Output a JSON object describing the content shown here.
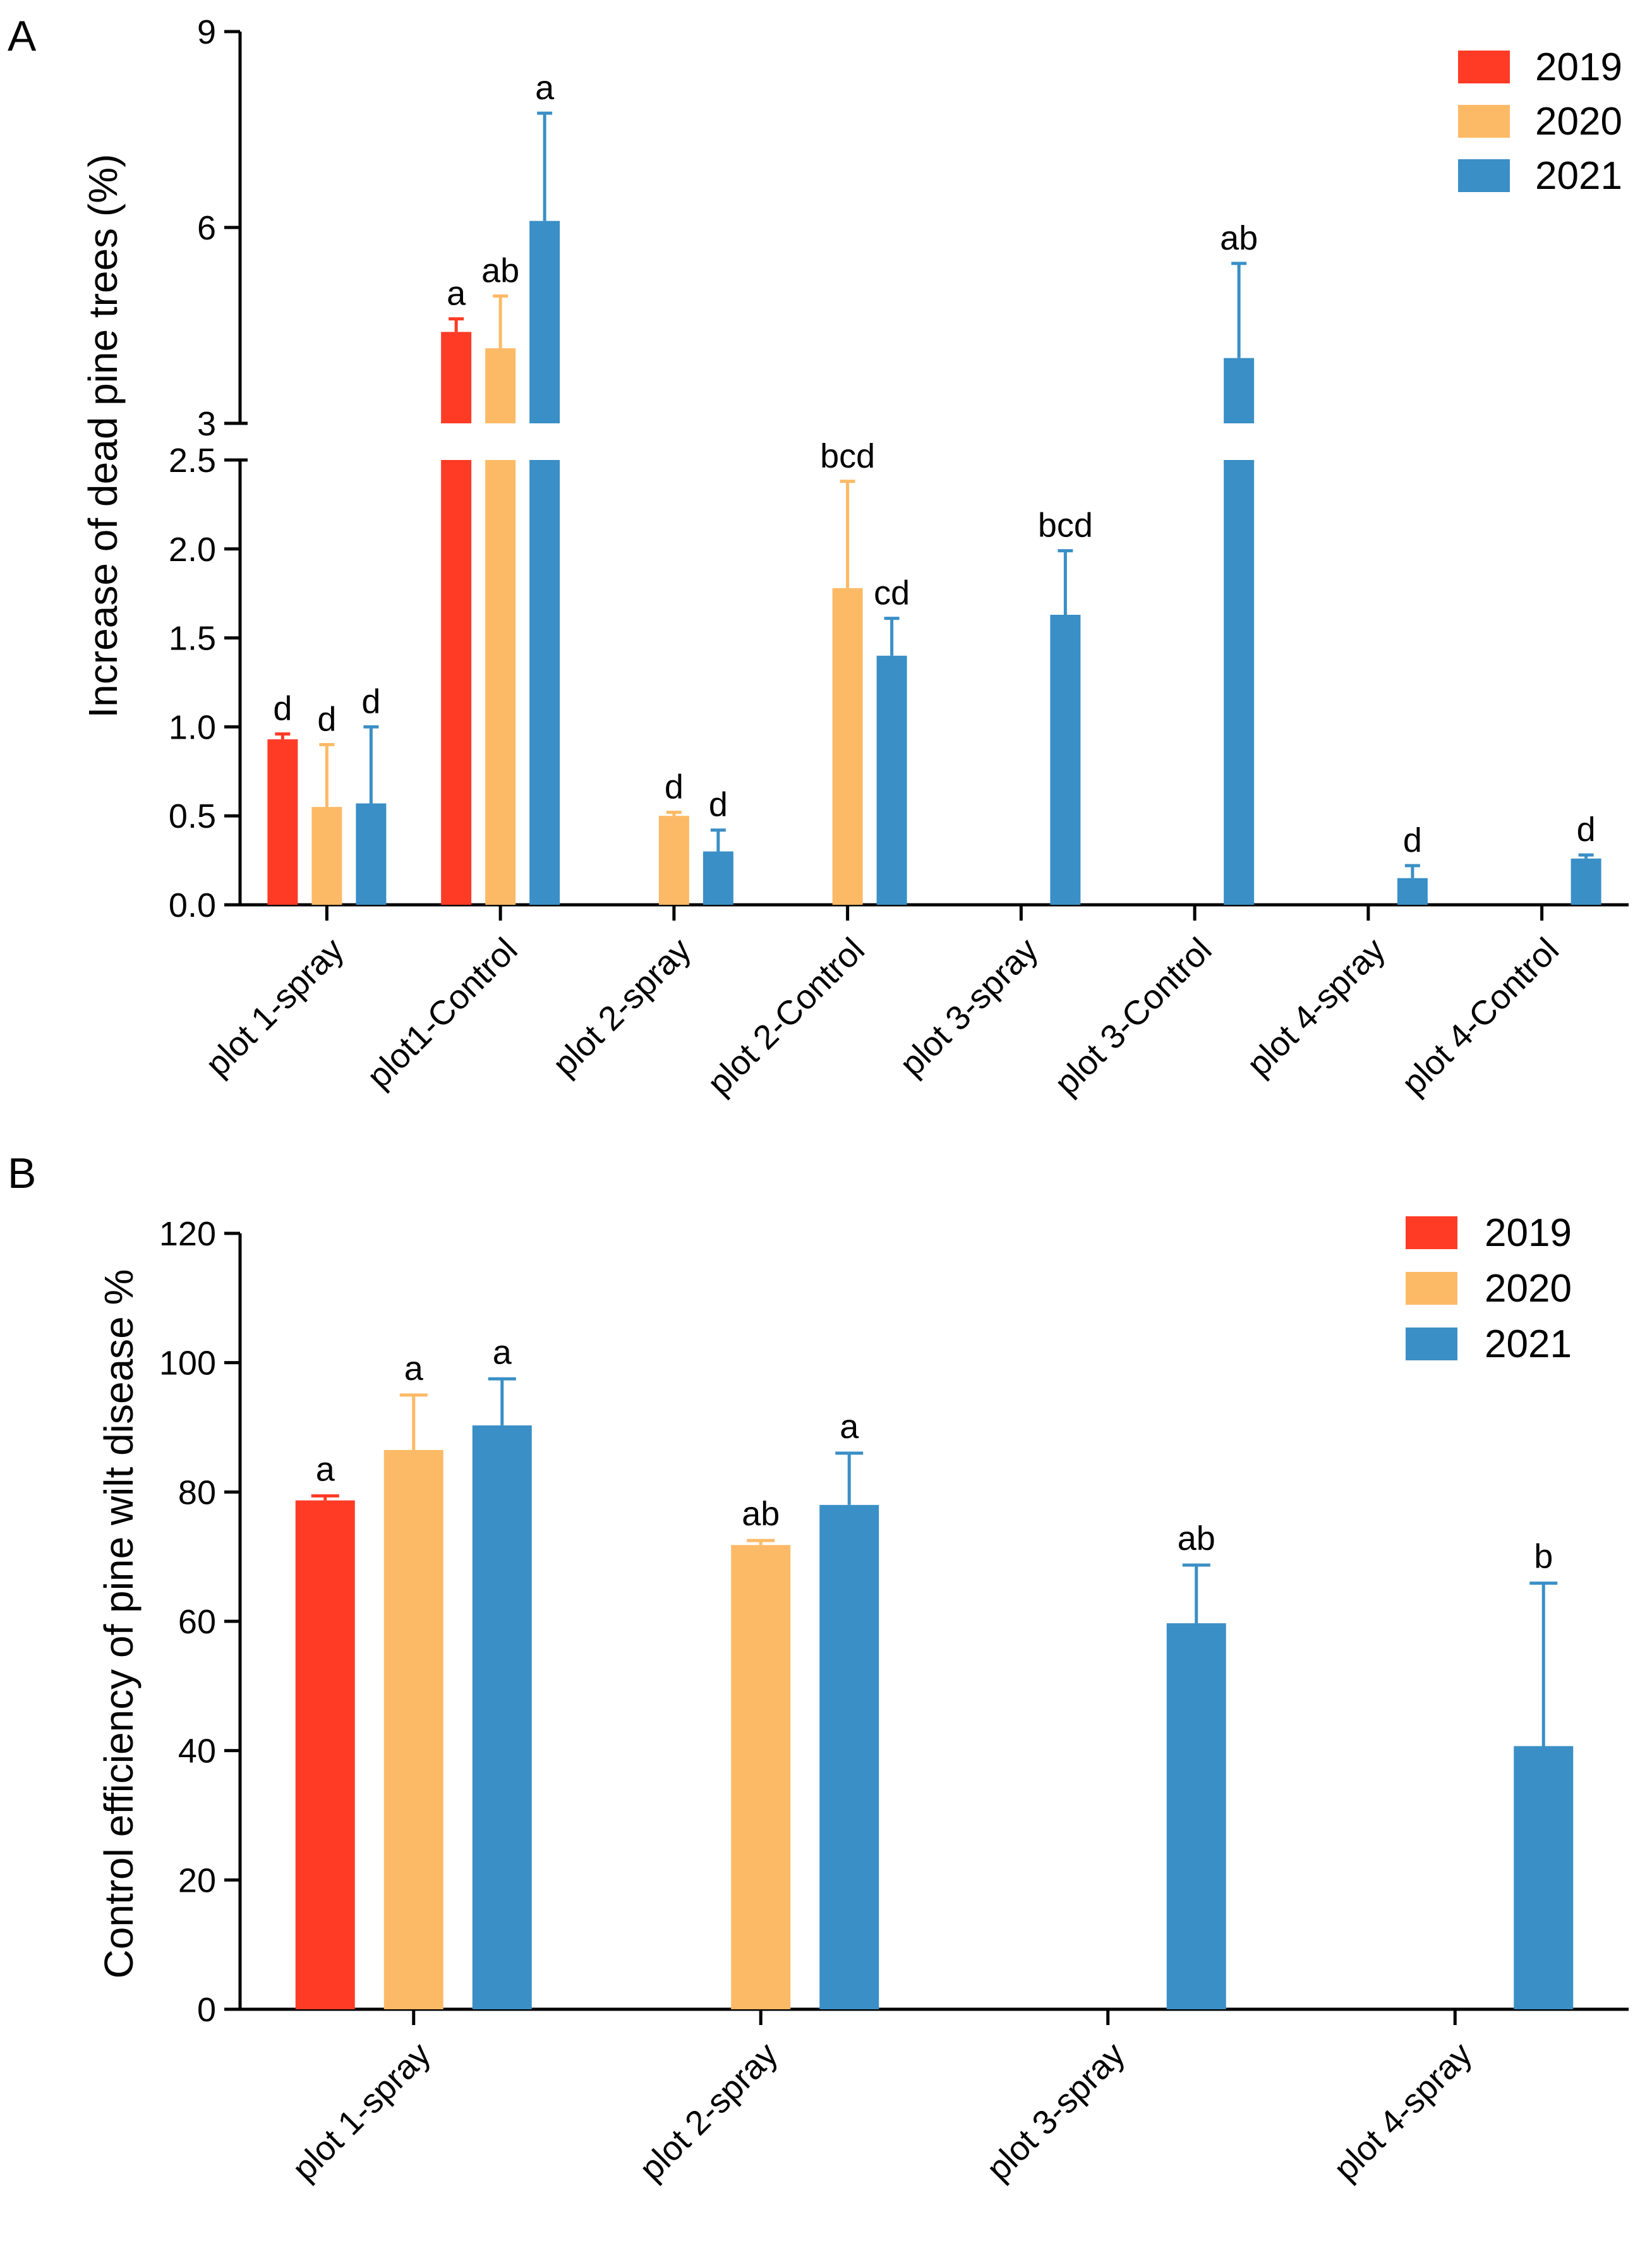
{
  "figure": {
    "colors": {
      "2019": "#FF3B26",
      "2020": "#FDBA66",
      "2021": "#3A8FC6"
    }
  },
  "chart_data": [
    {
      "panel": "A",
      "type": "bar",
      "ylabel": "Increase of dead pine trees (%)",
      "xlabel": "",
      "broken_axis": {
        "lower_range": [
          0,
          2.5
        ],
        "upper_range": [
          3,
          9
        ]
      },
      "lower_ticks": [
        "0.0",
        "0.5",
        "1.0",
        "1.5",
        "2.0",
        "2.5"
      ],
      "upper_ticks": [
        "3",
        "6",
        "9"
      ],
      "categories": [
        "plot 1-spray",
        "plot1-Control",
        "plot 2-spray",
        "plot 2-Control",
        "plot 3-spray",
        "plot 3-Control",
        "plot 4-spray",
        "plot 4-Control"
      ],
      "legend": {
        "position": "top-right",
        "entries": [
          "2019",
          "2020",
          "2021"
        ]
      },
      "series": [
        {
          "name": "2019",
          "values": [
            0.93,
            4.4,
            null,
            null,
            null,
            null,
            null,
            null
          ],
          "errors": [
            0.03,
            0.2,
            null,
            null,
            null,
            null,
            null,
            null
          ],
          "labels": [
            "d",
            "a",
            null,
            null,
            null,
            null,
            null,
            null
          ]
        },
        {
          "name": "2020",
          "values": [
            0.55,
            4.15,
            0.5,
            1.78,
            null,
            null,
            null,
            null
          ],
          "errors": [
            0.35,
            0.8,
            0.02,
            0.6,
            null,
            null,
            null,
            null
          ],
          "labels": [
            "d",
            "ab",
            "d",
            "bcd",
            null,
            null,
            null,
            null
          ]
        },
        {
          "name": "2021",
          "values": [
            0.57,
            6.1,
            0.3,
            1.4,
            1.63,
            4.0,
            0.15,
            0.26
          ],
          "errors": [
            0.43,
            1.65,
            0.12,
            0.21,
            0.36,
            1.45,
            0.07,
            0.02
          ],
          "labels": [
            "d",
            "a",
            "d",
            "cd",
            "bcd",
            "ab",
            "d",
            "d"
          ]
        }
      ]
    },
    {
      "panel": "B",
      "type": "bar",
      "ylabel": "Control efficiency of pine wilt disease %",
      "xlabel": "",
      "ylim": [
        0,
        120
      ],
      "yticks": [
        "0",
        "20",
        "40",
        "60",
        "80",
        "100",
        "120"
      ],
      "categories": [
        "plot 1-spray",
        "plot 2-spray",
        "plot 3-spray",
        "plot 4-spray"
      ],
      "legend": {
        "position": "top-right",
        "entries": [
          "2019",
          "2020",
          "2021"
        ]
      },
      "series": [
        {
          "name": "2019",
          "values": [
            78.7,
            null,
            null,
            null
          ],
          "errors": [
            0.7,
            null,
            null,
            null
          ],
          "labels": [
            "a",
            null,
            null,
            null
          ]
        },
        {
          "name": "2020",
          "values": [
            86.5,
            71.8,
            null,
            null
          ],
          "errors": [
            8.5,
            0.7,
            null,
            null
          ],
          "labels": [
            "a",
            "ab",
            null,
            null
          ]
        },
        {
          "name": "2021",
          "values": [
            90.3,
            78.0,
            59.7,
            40.7
          ],
          "errors": [
            7.2,
            8.0,
            9.0,
            25.2
          ],
          "labels": [
            "a",
            "a",
            "ab",
            "b"
          ]
        }
      ]
    }
  ]
}
